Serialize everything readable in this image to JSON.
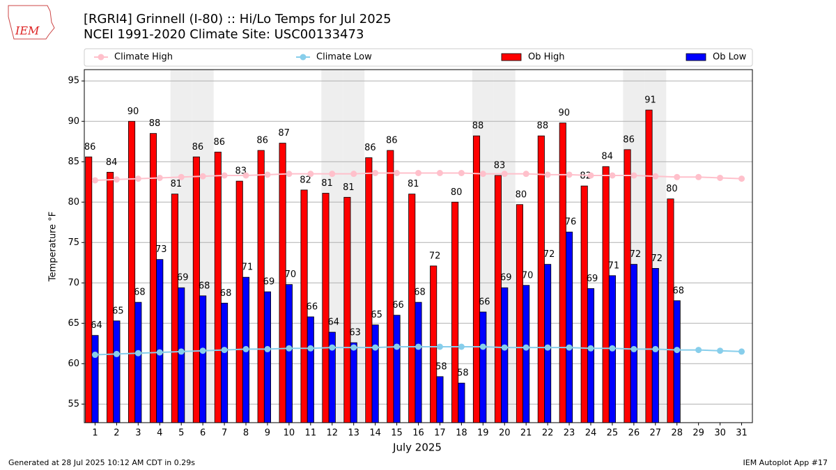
{
  "logo_text": "IEM",
  "footer_left": "Generated at 28 Jul 2025 10:12 AM CDT in 0.29s",
  "footer_right": "IEM Autoplot App #17",
  "chart_data": {
    "type": "bar",
    "title": "[RGRI4] Grinnell (I-80) :: Hi/Lo Temps for Jul 2025",
    "subtitle": "NCEI 1991-2020 Climate Site: USC00133473",
    "x_label": "July 2025",
    "y_label": "Temperature °F",
    "categories": [
      "1",
      "2",
      "3",
      "4",
      "5",
      "6",
      "7",
      "8",
      "9",
      "10",
      "11",
      "12",
      "13",
      "14",
      "15",
      "16",
      "17",
      "18",
      "19",
      "20",
      "21",
      "22",
      "23",
      "24",
      "25",
      "26",
      "27",
      "28",
      "29",
      "30",
      "31"
    ],
    "shaded_days": [
      5,
      6,
      12,
      13,
      19,
      20,
      26,
      27
    ],
    "ylim": [
      52.7,
      96.4
    ],
    "yticks": [
      55,
      60,
      65,
      70,
      75,
      80,
      85,
      90,
      95
    ],
    "grid": true,
    "series": [
      {
        "name": "Climate High",
        "type": "line",
        "color": "#ffc0cb",
        "values": [
          82.7,
          82.8,
          82.9,
          83.0,
          83.1,
          83.2,
          83.3,
          83.3,
          83.4,
          83.5,
          83.5,
          83.5,
          83.5,
          83.6,
          83.6,
          83.6,
          83.6,
          83.6,
          83.5,
          83.5,
          83.5,
          83.4,
          83.4,
          83.3,
          83.3,
          83.3,
          83.2,
          83.1,
          83.1,
          83.0,
          82.9
        ]
      },
      {
        "name": "Climate Low",
        "type": "line",
        "color": "#87ceeb",
        "values": [
          61.1,
          61.2,
          61.3,
          61.4,
          61.5,
          61.6,
          61.7,
          61.8,
          61.8,
          61.9,
          61.9,
          62.0,
          62.0,
          62.0,
          62.1,
          62.1,
          62.1,
          62.1,
          62.1,
          62.0,
          62.0,
          62.0,
          62.0,
          61.9,
          61.9,
          61.8,
          61.8,
          61.7,
          61.7,
          61.6,
          61.5
        ]
      },
      {
        "name": "Ob High",
        "type": "bar",
        "color": "#ff0000",
        "values": [
          85.6,
          83.7,
          90.0,
          88.5,
          81.0,
          85.6,
          86.2,
          82.6,
          86.4,
          87.3,
          81.5,
          81.1,
          80.6,
          85.5,
          86.4,
          81.0,
          72.1,
          80.0,
          88.2,
          83.3,
          79.7,
          88.2,
          89.8,
          82.0,
          84.4,
          86.5,
          91.4,
          80.4,
          null,
          null,
          null
        ],
        "value_labels": [
          "86",
          "84",
          "90",
          "88",
          "81",
          "86",
          "86",
          "83",
          "86",
          "87",
          "82",
          "81",
          "81",
          "86",
          "86",
          "81",
          "72",
          "80",
          "88",
          "83",
          "80",
          "88",
          "90",
          "82",
          "84",
          "86",
          "91",
          "80",
          null,
          null,
          null
        ]
      },
      {
        "name": "Ob Low",
        "type": "bar",
        "color": "#0000ff",
        "values": [
          63.5,
          65.3,
          67.6,
          72.9,
          69.4,
          68.4,
          67.5,
          70.7,
          68.9,
          69.8,
          65.8,
          63.9,
          62.6,
          64.8,
          66.0,
          67.6,
          58.4,
          57.6,
          66.4,
          69.4,
          69.7,
          72.3,
          76.3,
          69.3,
          70.9,
          72.3,
          71.8,
          67.8,
          null,
          null,
          null
        ],
        "value_labels": [
          "64",
          "65",
          "68",
          "73",
          "69",
          "68",
          "68",
          "71",
          "69",
          "70",
          "66",
          "64",
          "63",
          "65",
          "66",
          "68",
          "58",
          "58",
          "66",
          "69",
          "70",
          "72",
          "76",
          "69",
          "71",
          "72",
          "72",
          "68",
          null,
          null,
          null
        ]
      }
    ]
  }
}
